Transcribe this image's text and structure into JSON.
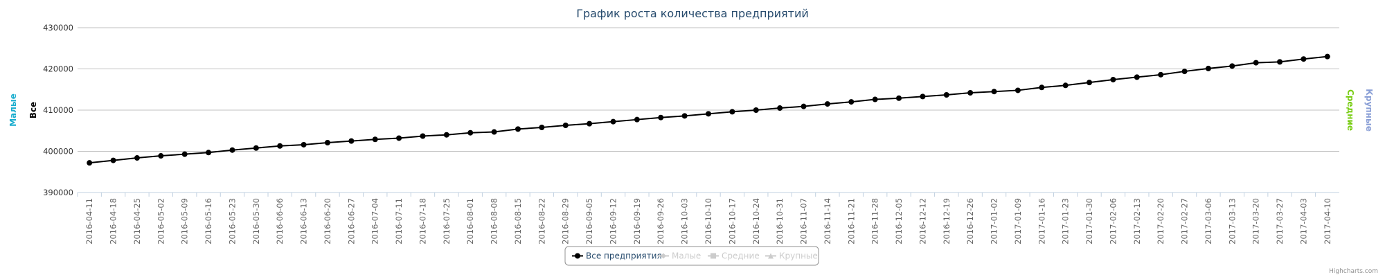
{
  "chart_data": {
    "type": "line",
    "title": "График роста количества предприятий",
    "categories": [
      "2016-04-11",
      "2016-04-18",
      "2016-04-25",
      "2016-05-02",
      "2016-05-09",
      "2016-05-16",
      "2016-05-23",
      "2016-05-30",
      "2016-06-06",
      "2016-06-13",
      "2016-06-20",
      "2016-06-27",
      "2016-07-04",
      "2016-07-11",
      "2016-07-18",
      "2016-07-25",
      "2016-08-01",
      "2016-08-08",
      "2016-08-15",
      "2016-08-22",
      "2016-08-29",
      "2016-09-05",
      "2016-09-12",
      "2016-09-19",
      "2016-09-26",
      "2016-10-03",
      "2016-10-10",
      "2016-10-17",
      "2016-10-24",
      "2016-10-31",
      "2016-11-07",
      "2016-11-14",
      "2016-11-21",
      "2016-11-28",
      "2016-12-05",
      "2016-12-12",
      "2016-12-19",
      "2016-12-26",
      "2017-01-02",
      "2017-01-09",
      "2017-01-16",
      "2017-01-23",
      "2017-01-30",
      "2017-02-06",
      "2017-02-13",
      "2017-02-20",
      "2017-02-27",
      "2017-03-06",
      "2017-03-13",
      "2017-03-20",
      "2017-03-27",
      "2017-04-03",
      "2017-04-10"
    ],
    "series": [
      {
        "name": "Все предприятия",
        "color": "#000000",
        "visible": true,
        "axis_title": "Все",
        "values": [
          397200,
          397800,
          398400,
          398900,
          399300,
          399700,
          400300,
          400800,
          401300,
          401600,
          402100,
          402500,
          402900,
          403200,
          403700,
          404000,
          404500,
          404700,
          405400,
          405800,
          406300,
          406700,
          407200,
          407700,
          408200,
          408600,
          409100,
          409600,
          410000,
          410500,
          410900,
          411500,
          412000,
          412600,
          412900,
          413300,
          413700,
          414200,
          414500,
          414800,
          415500,
          416000,
          416700,
          417400,
          418000,
          418600,
          419400,
          420100,
          420700,
          421500,
          421700,
          422400,
          423000
        ]
      },
      {
        "name": "Малые",
        "color": "#1aadce",
        "visible": false,
        "axis_title": "Малые"
      },
      {
        "name": "Средние",
        "color": "#77cc11",
        "visible": false,
        "axis_title": "Средние"
      },
      {
        "name": "Крупные",
        "color": "#8a9fd6",
        "visible": false,
        "axis_title": "Крупные"
      }
    ],
    "ylim": [
      390000,
      430000
    ],
    "yticks": [
      390000,
      400000,
      410000,
      420000,
      430000
    ],
    "grid": true,
    "legend": "bottom",
    "credits": "Highcharts.com"
  }
}
